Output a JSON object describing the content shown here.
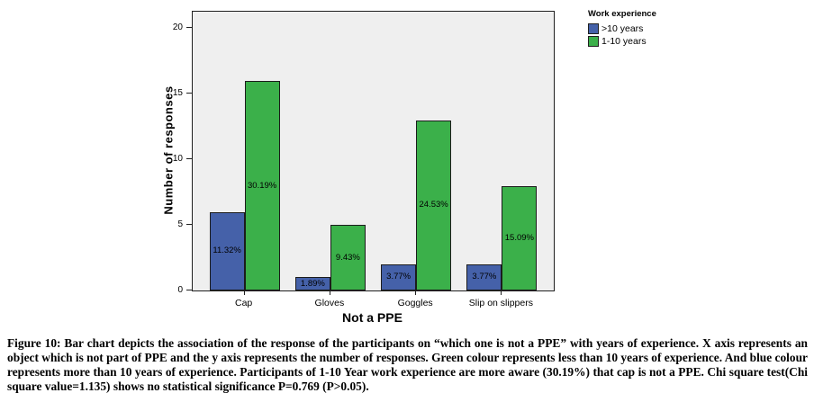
{
  "chart_data": {
    "type": "bar",
    "title": "",
    "xlabel": "Not a PPE",
    "ylabel": "Number of responses",
    "categories": [
      "Cap",
      "Gloves",
      "Goggles",
      "Slip on slippers"
    ],
    "series": [
      {
        "name": ">10 years",
        "color": "#4561a9",
        "values": [
          6,
          1,
          2,
          2
        ],
        "percent_labels": [
          "11.32%",
          "1.89%",
          "3.77%",
          "3.77%"
        ]
      },
      {
        "name": "1-10 years",
        "color": "#3bb04a",
        "values": [
          16,
          5,
          13,
          8
        ],
        "percent_labels": [
          "30.19%",
          "9.43%",
          "24.53%",
          "15.09%"
        ]
      }
    ],
    "y_ticks": [
      0,
      5,
      10,
      15,
      20
    ],
    "ylim": [
      0,
      21.3
    ],
    "grid": false,
    "plot_background": "#efefef",
    "legend": {
      "title": "Work experience",
      "position": "top-right"
    }
  },
  "figure": {
    "caption": "Figure 10: Bar chart  depicts the association of the response of the participants on “which one is not a PPE” with  years of experience. X axis represents an object which is not part of PPE and the y axis represents the number of responses. Green colour represents less than 10 years of experience. And blue colour represents more than 10 years of experience.  Participants of 1-10 Year work experience are more aware (30.19%) that cap is not a PPE. Chi square test(Chi square value=1.135) shows no statistical significance P=0.769 (P>0.05)."
  }
}
